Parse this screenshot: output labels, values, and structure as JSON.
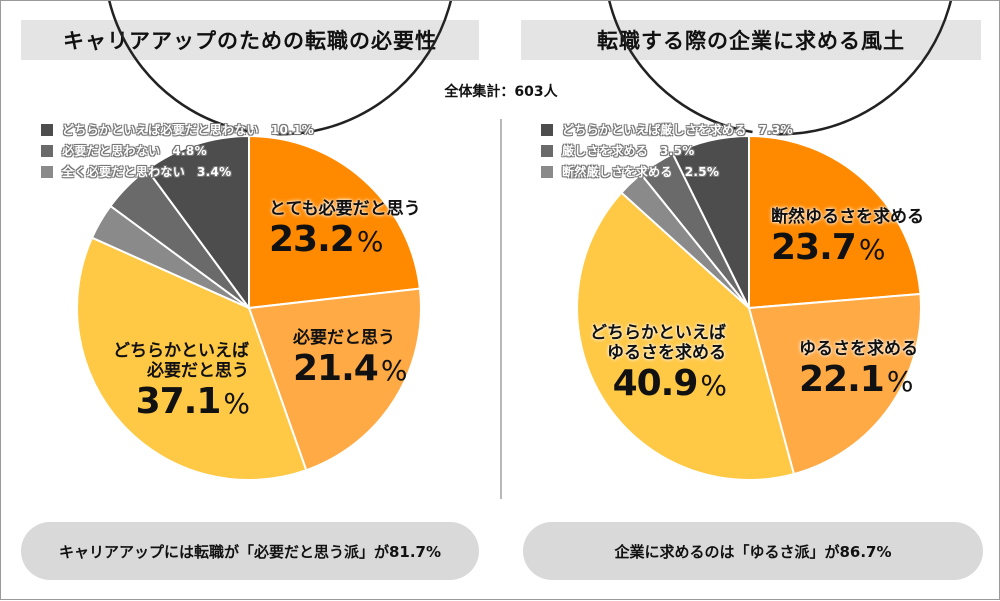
{
  "total_label": "全体集計：603人",
  "summary_left": "キャリアアップには転職が「必要だと思う派」が81.7%",
  "summary_right": "企業に求めるのは「ゆるさ派」が86.7%",
  "chart_data": [
    {
      "type": "pie",
      "title": "キャリアアップのための転職の必要性",
      "slices": [
        {
          "name": "とても必要だと思う",
          "value": 23.2,
          "color": "#ff8a00"
        },
        {
          "name": "必要だと思う",
          "value": 21.4,
          "color": "#ffaa45"
        },
        {
          "name": "どちらかといえば必要だと思う",
          "value": 37.1,
          "color": "#ffc845"
        },
        {
          "name": "全く必要だと思わない",
          "value": 3.4,
          "color": "#8a8a8a"
        },
        {
          "name": "必要だと思わない",
          "value": 4.8,
          "color": "#6a6a6a"
        },
        {
          "name": "どちらかといえば必要だと思わない",
          "value": 10.1,
          "color": "#4d4d4d"
        }
      ],
      "slice_labels": [
        {
          "lines": [
            "とても必要だと思う"
          ],
          "value": "23.2"
        },
        {
          "lines": [
            "必要だと思う"
          ],
          "value": "21.4"
        },
        {
          "lines": [
            "どちらかといえば",
            "必要だと思う"
          ],
          "value": "37.1"
        }
      ],
      "unit": "%",
      "legend": [
        {
          "label": "どちらかといえば必要だと思わない",
          "value": "10.1%",
          "color": "#4d4d4d"
        },
        {
          "label": "必要だと思わない",
          "value": "4.8%",
          "color": "#6a6a6a"
        },
        {
          "label": "全く必要だと思わない",
          "value": "3.4%",
          "color": "#8a8a8a"
        }
      ],
      "legend_position": "top-left"
    },
    {
      "type": "pie",
      "title": "転職する際の企業に求める風土",
      "slices": [
        {
          "name": "断然ゆるさを求める",
          "value": 23.7,
          "color": "#ff8a00"
        },
        {
          "name": "ゆるさを求める",
          "value": 22.1,
          "color": "#ffaa45"
        },
        {
          "name": "どちらかといえばゆるさを求める",
          "value": 40.9,
          "color": "#ffc845"
        },
        {
          "name": "断然厳しさを求める",
          "value": 2.5,
          "color": "#8a8a8a"
        },
        {
          "name": "厳しさを求める",
          "value": 3.5,
          "color": "#6a6a6a"
        },
        {
          "name": "どちらかといえば厳しさを求める",
          "value": 7.3,
          "color": "#4d4d4d"
        }
      ],
      "slice_labels": [
        {
          "lines": [
            "断然ゆるさを求める"
          ],
          "value": "23.7"
        },
        {
          "lines": [
            "ゆるさを求める"
          ],
          "value": "22.1"
        },
        {
          "lines": [
            "どちらかといえば",
            "ゆるさを求める"
          ],
          "value": "40.9"
        }
      ],
      "unit": "%",
      "legend": [
        {
          "label": "どちらかといえば厳しさを求める",
          "value": "7.3%",
          "color": "#4d4d4d"
        },
        {
          "label": "厳しさを求める",
          "value": "3.5%",
          "color": "#6a6a6a"
        },
        {
          "label": "断然厳しさを求める",
          "value": "2.5%",
          "color": "#8a8a8a"
        }
      ],
      "legend_position": "top-left"
    }
  ]
}
